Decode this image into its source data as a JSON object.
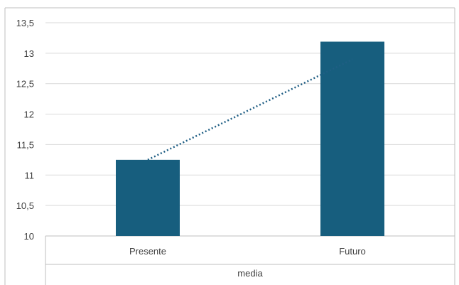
{
  "chart_data": {
    "type": "bar",
    "categories": [
      "Presente",
      "Futuro"
    ],
    "values": [
      11.25,
      13.19
    ],
    "xlabel": "media",
    "ylim": [
      10,
      13.5
    ],
    "yticks": [
      10,
      10.5,
      11,
      11.5,
      12,
      12.5,
      13,
      13.5
    ],
    "ytick_labels": [
      "10",
      "10,5",
      "11",
      "11,5",
      "12",
      "12,5",
      "13",
      "13,5"
    ],
    "grid": true,
    "trendline": "linear-dotted",
    "colors": {
      "bar": "#175e7e",
      "trendline": "#1f5e84",
      "grid": "#d9d9d9",
      "axis": "#bfbfbf",
      "text": "#404040"
    }
  }
}
